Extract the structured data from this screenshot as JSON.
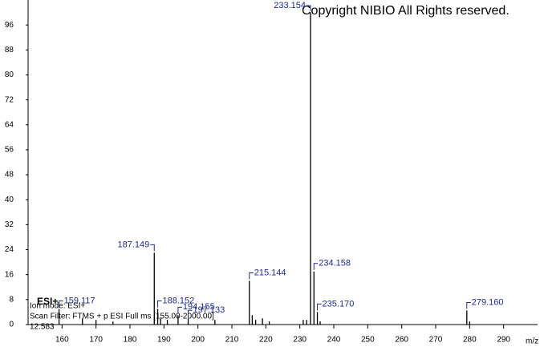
{
  "chart_data": {
    "type": "spectrum",
    "copyright": "Copyright NIBIO All Rights reserved.",
    "x_label": "m/z",
    "mode_tag": "ESI+",
    "ion_mode": "Ion mode: ESI+",
    "scan_filter": "Scan Filter: FTMS + p ESI Full ms [155.00-2000.00]",
    "retention_time": "12.583",
    "xlim": [
      150,
      300
    ],
    "ylim": [
      0,
      104
    ],
    "xticks": [
      160,
      170,
      180,
      190,
      200,
      210,
      220,
      230,
      240,
      250,
      260,
      270,
      280,
      290
    ],
    "yticks": [
      0,
      8,
      16,
      24,
      32,
      40,
      48,
      56,
      64,
      72,
      80,
      88,
      96
    ],
    "series": [
      {
        "color": "#000000",
        "label_color": "#1c2a8c",
        "x": [
          159.117,
          187.149,
          188.152,
          194.155,
          197.133,
          215.144,
          233.154,
          234.158,
          235.17,
          279.16
        ],
        "values": [
          5,
          23,
          5,
          3,
          2,
          14,
          100,
          17,
          4,
          4.5
        ],
        "peak_labels": [
          "159.117",
          "187.149",
          "188.152",
          "194.155",
          "197.133",
          "215.144",
          "233.154",
          "234.158",
          "235.170",
          "279.160"
        ]
      },
      {
        "color": "#000000",
        "x": [
          166,
          170,
          175,
          189,
          191,
          205,
          216,
          217,
          219,
          221,
          231,
          232,
          236,
          280
        ],
        "values": [
          2,
          1.5,
          1,
          2,
          1.5,
          1.5,
          3,
          1.5,
          2,
          1,
          1.5,
          1.5,
          1,
          1
        ]
      }
    ]
  }
}
